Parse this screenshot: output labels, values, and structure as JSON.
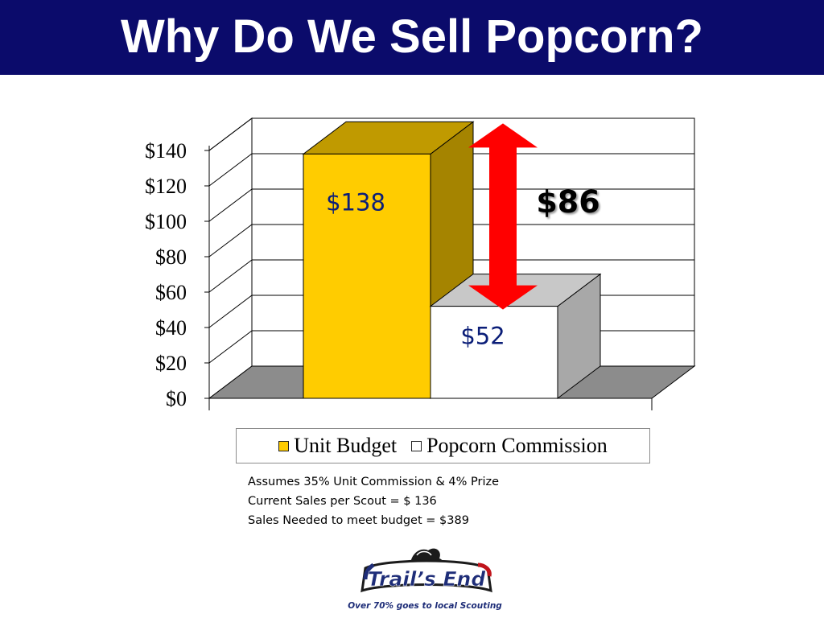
{
  "header": {
    "title": "Why Do We Sell Popcorn?"
  },
  "chart_data": {
    "type": "bar",
    "categories": [
      "Unit Budget",
      "Popcorn Commission"
    ],
    "values": [
      138,
      52
    ],
    "data_labels": [
      "$138",
      "$52"
    ],
    "series": [
      {
        "name": "Unit Budget",
        "value": 138,
        "color": "#ffcc00"
      },
      {
        "name": "Popcorn Commission",
        "value": 52,
        "color": "#ffffff"
      }
    ],
    "ylim": [
      0,
      140
    ],
    "y_ticks": [
      0,
      20,
      40,
      60,
      80,
      100,
      120,
      140
    ],
    "y_tick_labels": [
      "$0",
      "$20",
      "$40",
      "$60",
      "$80",
      "$100",
      "$120",
      "$140"
    ],
    "grid": true,
    "legend": "bottom",
    "annotation": {
      "label": "$86",
      "value": 86,
      "color": "#ff0000"
    },
    "three_d": true
  },
  "notes": [
    "Assumes 35% Unit Commission & 4% Prize",
    "Current Sales per Scout = $ 136",
    "Sales Needed to meet budget = $389"
  ],
  "logo": {
    "name": "Trail’s End",
    "tagline": "Over 70% goes to local Scouting"
  },
  "colors": {
    "title_bar": "#0b0b6b",
    "unit_budget": "#ffcc00",
    "commission": "#ffffff",
    "arrow": "#ff0000",
    "label_text": "#0b1e78"
  }
}
